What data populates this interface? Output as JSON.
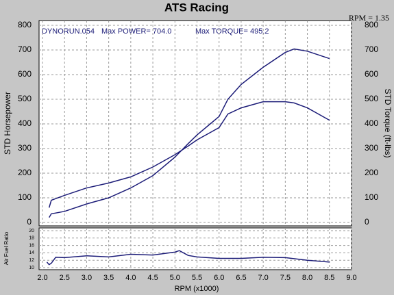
{
  "chart_data": [
    {
      "type": "line",
      "title": "ATS Racing",
      "note": "RPM = 1.35",
      "annotations": [
        "DYNORUN.054",
        "Max POWER= 704.0",
        "Max TORQUE= 495.2"
      ],
      "ylabel": "STD Horsepower",
      "y2label": "STD Torque (ft-lbs)",
      "xlim": [
        2,
        9
      ],
      "x": [
        2.15,
        2.2,
        2.5,
        3.0,
        3.5,
        4.0,
        4.5,
        5.0,
        5.3,
        5.5,
        5.8,
        6.0,
        6.2,
        6.5,
        7.0,
        7.5,
        7.7,
        8.0,
        8.5
      ],
      "series": [
        {
          "name": "STD Horsepower",
          "color": "#1c1c78",
          "values": [
            20,
            35,
            45,
            75,
            100,
            140,
            190,
            265,
            320,
            355,
            400,
            430,
            500,
            560,
            630,
            690,
            704,
            695,
            665
          ]
        },
        {
          "name": "STD Torque",
          "color": "#1c1c78",
          "axis": "y2",
          "values": [
            60,
            90,
            110,
            140,
            160,
            185,
            225,
            275,
            310,
            335,
            365,
            385,
            440,
            465,
            490,
            490,
            485,
            465,
            415
          ]
        }
      ],
      "ylim": [
        0,
        800
      ],
      "yticks": [
        0,
        100,
        200,
        300,
        400,
        500,
        600,
        700,
        800
      ],
      "y2lim": [
        0,
        800
      ],
      "y2ticks": [
        0,
        100,
        200,
        300,
        400,
        500,
        600,
        700,
        800
      ],
      "grid": true
    },
    {
      "type": "line",
      "ylabel": "Air Fuel Ratio",
      "xlabel": "RPM (x1000)",
      "xlim": [
        2,
        9
      ],
      "xticks": [
        {
          "value": 2,
          "label": "2.0"
        },
        2.5,
        {
          "value": 3,
          "label": "3.0"
        },
        3.5,
        {
          "value": 4,
          "label": "4.0"
        },
        4.5,
        {
          "value": 5,
          "label": "5.0"
        },
        5.5,
        {
          "value": 6,
          "label": "6.0"
        },
        6.5,
        {
          "value": 7,
          "label": "7.0"
        },
        7.5,
        {
          "value": 8,
          "label": "8.0"
        },
        8.5,
        {
          "value": 9,
          "label": "9.0"
        }
      ],
      "x": [
        2.1,
        2.15,
        2.2,
        2.3,
        2.5,
        3.0,
        3.5,
        4.0,
        4.5,
        5.0,
        5.1,
        5.3,
        5.5,
        6.0,
        6.5,
        7.0,
        7.5,
        8.0,
        8.5
      ],
      "values": [
        11.5,
        10.8,
        11.2,
        12.8,
        12.7,
        13.2,
        12.9,
        13.6,
        13.4,
        14.2,
        14.6,
        13.3,
        12.9,
        12.5,
        12.5,
        12.8,
        12.7,
        12.0,
        11.5
      ],
      "color": "#1c1c78",
      "ylim": [
        10,
        20
      ],
      "yticks": [
        10,
        12,
        14,
        16,
        18,
        20
      ],
      "grid": true
    }
  ]
}
